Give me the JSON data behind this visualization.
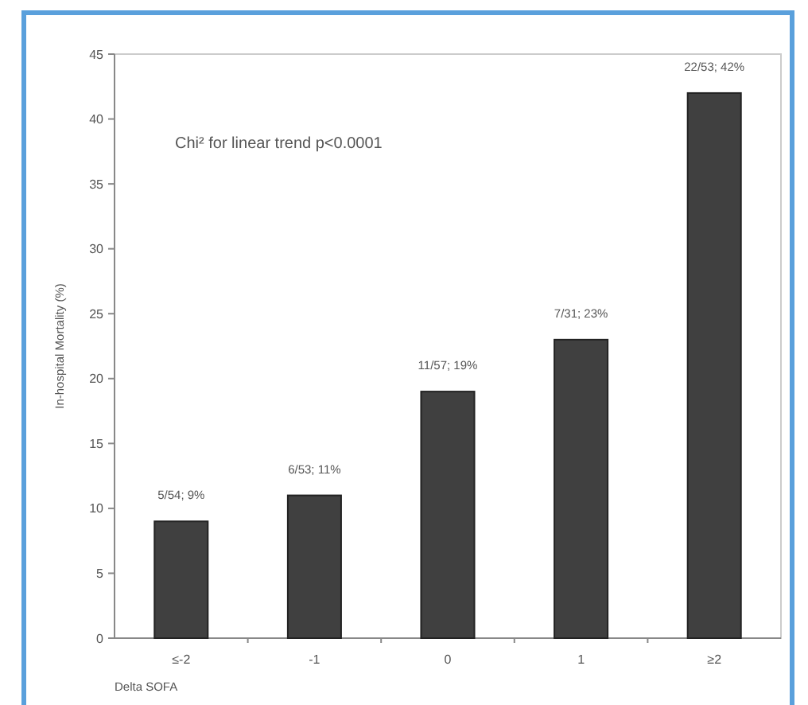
{
  "chart_data": {
    "type": "bar",
    "xlabel": "Delta SOFA",
    "ylabel": "In-hospital Mortality (%)",
    "categories": [
      "≤-2",
      "-1",
      "0",
      "1",
      "≥2"
    ],
    "values": [
      9,
      11,
      19,
      23,
      42
    ],
    "value_labels": [
      "5/54; 9%",
      "6/53; 11%",
      "11/57; 19%",
      "7/31; 23%",
      "22/53; 42%"
    ],
    "color": "#404040",
    "ylim": [
      0,
      45
    ],
    "yticks": [
      0,
      5,
      10,
      15,
      20,
      25,
      30,
      35,
      40,
      45
    ],
    "annotations": [
      "Chi² for linear trend p<0.0001"
    ]
  }
}
